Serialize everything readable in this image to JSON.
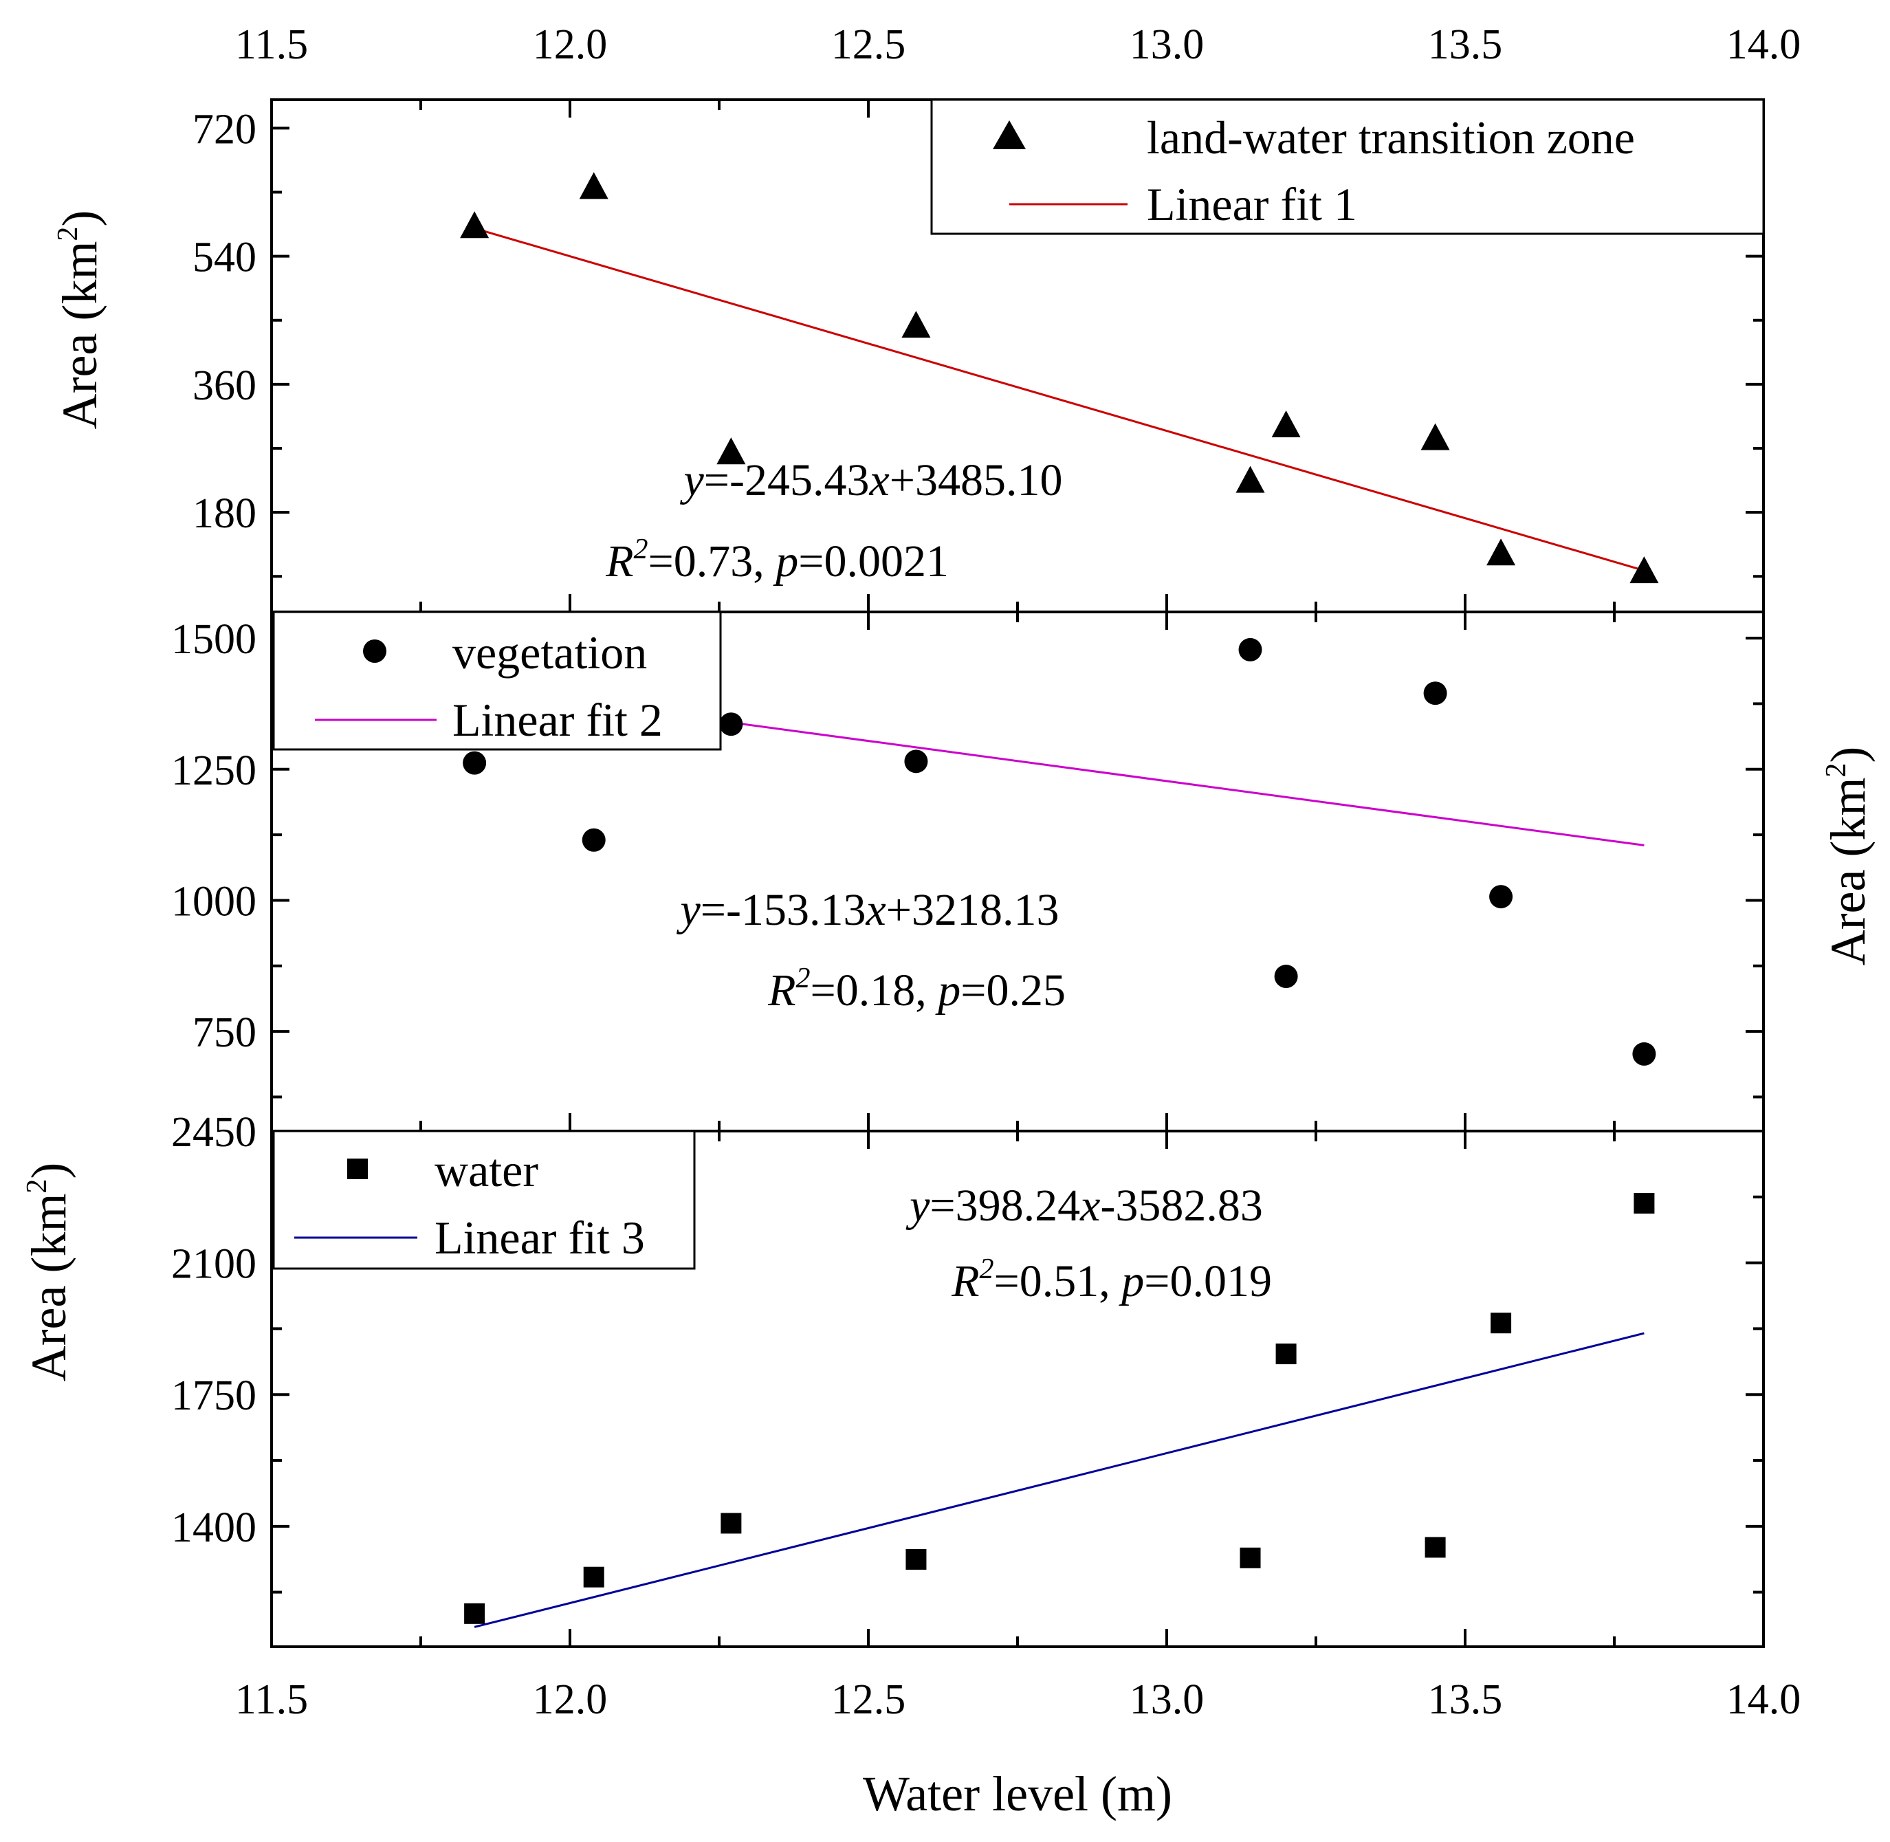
{
  "colors": {
    "fit1": "#cc0000",
    "fit2": "#cc00cc",
    "fit3": "#000099",
    "marker": "#000000"
  },
  "x_axis": {
    "label": "Water level (m)",
    "ticks": [
      11.5,
      12.0,
      12.5,
      13.0,
      13.5,
      14.0
    ],
    "tick_labels": [
      "11.5",
      "12.0",
      "12.5",
      "13.0",
      "13.5",
      "14.0"
    ],
    "range": [
      11.5,
      14.0
    ]
  },
  "chart_data": [
    {
      "type": "scatter",
      "panel": "top",
      "ylabel": "Area (km",
      "ylabel_sup": "2",
      "ylabel_close": ")",
      "ylabel_side": "left",
      "ylim": [
        40,
        760
      ],
      "yticks": [
        180,
        360,
        540,
        720
      ],
      "ytick_labels": [
        "180",
        "360",
        "540",
        "720"
      ],
      "marker": "triangle",
      "series": [
        {
          "name": "land-water transition zone",
          "x": [
            11.84,
            12.04,
            12.27,
            12.58,
            13.14,
            13.2,
            13.45,
            13.56,
            13.8
          ],
          "y": [
            580,
            635,
            262,
            440,
            222,
            300,
            282,
            120,
            95
          ]
        }
      ],
      "fit": {
        "name": "Linear fit 1",
        "slope": -245.43,
        "intercept": 3485.1,
        "x_range": [
          11.84,
          13.8
        ]
      },
      "annotation": {
        "equation": "y=-245.43x+3485.10",
        "stats": "R2=0.73, p=0.0021"
      }
    },
    {
      "type": "scatter",
      "panel": "middle",
      "ylabel": "Area (km",
      "ylabel_sup": "2",
      "ylabel_close": ")",
      "ylabel_side": "right",
      "ylim": [
        560,
        1550
      ],
      "yticks": [
        750,
        1000,
        1250,
        1500
      ],
      "ytick_labels": [
        "750",
        "1000",
        "1250",
        "1500"
      ],
      "marker": "circle",
      "series": [
        {
          "name": "vegetation",
          "x": [
            11.84,
            12.04,
            12.27,
            12.58,
            13.14,
            13.2,
            13.45,
            13.56,
            13.8
          ],
          "y": [
            1262,
            1115,
            1336,
            1265,
            1478,
            855,
            1395,
            1007,
            707
          ]
        }
      ],
      "fit": {
        "name": "Linear fit 2",
        "slope": -153.13,
        "intercept": 3218.13,
        "x_range": [
          11.84,
          13.8
        ]
      },
      "annotation": {
        "equation": "y=-153.13x+3218.13",
        "stats": "R2=0.18, p=0.25"
      }
    },
    {
      "type": "scatter",
      "panel": "bottom",
      "ylabel": "Area (km",
      "ylabel_sup": "2",
      "ylabel_close": ")",
      "ylabel_side": "left",
      "ylim": [
        1080,
        2450
      ],
      "yticks": [
        1400,
        1750,
        2100,
        2450
      ],
      "ytick_labels": [
        "1400",
        "1750",
        "2100",
        "2450"
      ],
      "marker": "square",
      "series": [
        {
          "name": "water",
          "x": [
            11.84,
            12.04,
            12.27,
            12.58,
            13.14,
            13.2,
            13.45,
            13.56,
            13.8
          ],
          "y": [
            1168,
            1265,
            1408,
            1312,
            1316,
            1858,
            1344,
            1940,
            2258
          ]
        }
      ],
      "fit": {
        "name": "Linear fit 3",
        "slope": 398.24,
        "intercept": -3582.83,
        "x_range": [
          11.84,
          13.8
        ]
      },
      "annotation": {
        "equation": "y=398.24x-3582.83",
        "stats": "R2=0.51, p=0.019"
      }
    }
  ]
}
